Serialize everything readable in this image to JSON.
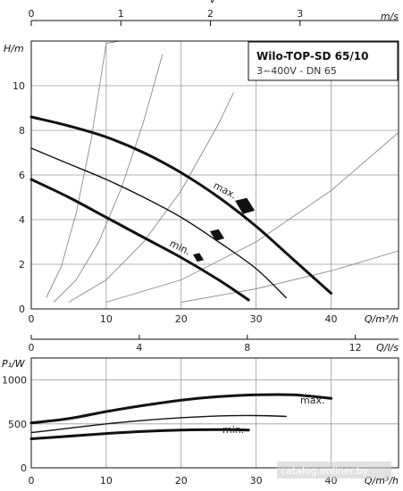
{
  "header": {
    "title": "Wilo-TOP-SD 65/10",
    "subtitle": "3~400V - DN 65"
  },
  "watermark": "catalog.onliner.by",
  "colors": {
    "curve": "#111111",
    "grid": "#9a9a9a",
    "system_curve": "#8c8c8c",
    "marker": "#111111"
  },
  "chart_data": [
    {
      "type": "line",
      "id": "head-chart",
      "xlabel": "Q/m³/h",
      "ylabel": "H/m",
      "xlim": [
        0,
        49
      ],
      "ylim": [
        0,
        12
      ],
      "x_ticks": [
        0,
        10,
        20,
        30,
        40
      ],
      "y_ticks": [
        0,
        2,
        4,
        6,
        8,
        10
      ],
      "top_axis": {
        "label": "v",
        "unit": "m/s",
        "range": [
          0,
          4.1
        ],
        "ticks": [
          0,
          1,
          2,
          3
        ]
      },
      "grid": true,
      "annotations": [
        "max.",
        "min."
      ],
      "series": [
        {
          "name": "max.",
          "weight": "thick",
          "x": [
            0,
            5,
            10,
            15,
            20,
            25,
            30,
            35,
            40
          ],
          "y": [
            8.6,
            8.2,
            7.7,
            7.0,
            6.1,
            5.0,
            3.7,
            2.2,
            0.7
          ]
        },
        {
          "weight": "thin",
          "x": [
            0,
            5,
            10,
            15,
            20,
            25,
            30,
            34
          ],
          "y": [
            7.2,
            6.5,
            5.8,
            5.0,
            4.1,
            3.0,
            1.8,
            0.5
          ]
        },
        {
          "name": "min.",
          "weight": "thick",
          "x": [
            0,
            5,
            10,
            15,
            20,
            25,
            29
          ],
          "y": [
            5.8,
            5.0,
            4.1,
            3.2,
            2.3,
            1.3,
            0.4
          ]
        }
      ],
      "system_curves": [
        {
          "x": [
            2,
            4,
            6,
            8,
            10,
            11.8
          ],
          "y": [
            0.5,
            1.9,
            4.3,
            7.6,
            11.9,
            12
          ]
        },
        {
          "x": [
            3,
            6,
            9,
            12,
            15,
            17.5
          ],
          "y": [
            0.3,
            1.3,
            3.0,
            5.4,
            8.4,
            11.4
          ]
        },
        {
          "x": [
            5,
            10,
            15,
            20,
            25,
            27
          ],
          "y": [
            0.3,
            1.3,
            3.0,
            5.3,
            8.3,
            9.7
          ]
        },
        {
          "x": [
            10,
            20,
            30,
            40,
            49
          ],
          "y": [
            0.3,
            1.3,
            3.0,
            5.3,
            7.9
          ]
        },
        {
          "x": [
            20,
            30,
            40,
            49
          ],
          "y": [
            0.3,
            0.9,
            1.7,
            2.6
          ]
        }
      ],
      "markers": [
        {
          "x": 28.5,
          "y": 4.6,
          "level": "max"
        },
        {
          "x": 24.8,
          "y": 3.3,
          "level": "mid"
        },
        {
          "x": 22.3,
          "y": 2.3,
          "level": "min"
        }
      ]
    },
    {
      "type": "line",
      "id": "power-chart",
      "xlabel": "Q/m³/h",
      "ylabel": "P₁/W",
      "xlim": [
        0,
        49
      ],
      "ylim": [
        0,
        1250
      ],
      "x_ticks": [
        0,
        10,
        20,
        30,
        40
      ],
      "y_ticks": [
        0,
        500,
        1000
      ],
      "top_axis": {
        "label": "Q/l/s",
        "range": [
          0,
          13.6
        ],
        "ticks": [
          0,
          4,
          8,
          12
        ]
      },
      "grid": true,
      "annotations": [
        "max.",
        "min."
      ],
      "series": [
        {
          "name": "max.",
          "weight": "thick",
          "x": [
            0,
            5,
            10,
            15,
            20,
            25,
            30,
            35,
            40
          ],
          "y": [
            510,
            560,
            640,
            710,
            770,
            810,
            830,
            830,
            790
          ]
        },
        {
          "weight": "thin",
          "x": [
            0,
            5,
            10,
            15,
            20,
            25,
            30,
            34
          ],
          "y": [
            400,
            450,
            500,
            540,
            570,
            590,
            595,
            585
          ]
        },
        {
          "name": "min.",
          "weight": "thick",
          "x": [
            0,
            5,
            10,
            15,
            20,
            25,
            29
          ],
          "y": [
            330,
            360,
            390,
            415,
            430,
            435,
            430
          ]
        }
      ]
    }
  ]
}
